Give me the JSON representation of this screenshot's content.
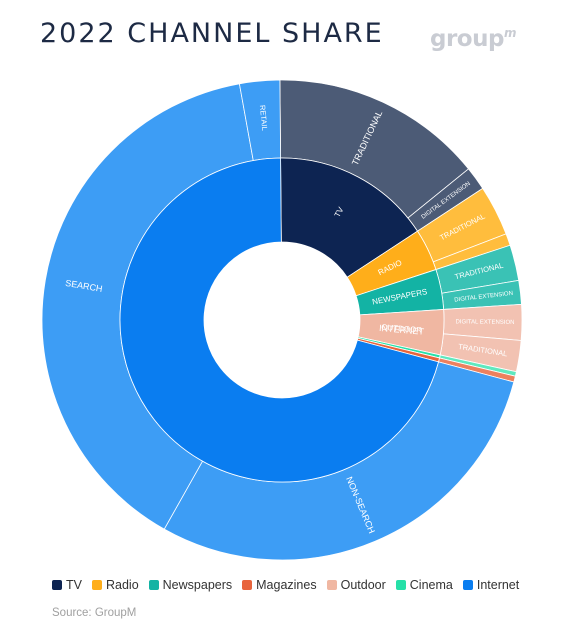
{
  "title": "2022 CHANNEL SHARE",
  "logo": {
    "text": "group",
    "mark": "m"
  },
  "source": "Source: GroupM",
  "chart_data": {
    "type": "sunburst",
    "title": "2022 CHANNEL SHARE",
    "inner": [
      {
        "name": "TV",
        "label": "TV",
        "value": 15.9,
        "color": "#0d2452"
      },
      {
        "name": "Radio",
        "label": "RADIO",
        "value": 4.2,
        "color": "#ffae1a"
      },
      {
        "name": "Newspapers",
        "label": "NEWSPAPERS",
        "value": 4.0,
        "color": "#13b3a4"
      },
      {
        "name": "Outdoor",
        "label": "OUTDOOR",
        "value": 4.5,
        "color": "#f0b7a2"
      },
      {
        "name": "Cinema",
        "label": "",
        "value": 0.3,
        "color": "#26e0a8"
      },
      {
        "name": "Magazines",
        "label": "",
        "value": 0.4,
        "color": "#e8643c"
      },
      {
        "name": "Internet",
        "label": "INTERNET",
        "value": 70.7,
        "color": "#0a7df0"
      }
    ],
    "outer": [
      {
        "parent": "TV",
        "label": "TRADITIONAL",
        "value": 14.3,
        "color": "#4c5b76"
      },
      {
        "parent": "TV",
        "label": "DIGITAL EXTENSION",
        "value": 1.6,
        "color": "#4c5b76"
      },
      {
        "parent": "Radio",
        "label": "TRADITIONAL",
        "value": 3.4,
        "color": "#ffbd3d"
      },
      {
        "parent": "Radio",
        "label": "",
        "value": 0.8,
        "color": "#ffbd3d"
      },
      {
        "parent": "Newspapers",
        "label": "TRADITIONAL",
        "value": 2.4,
        "color": "#3ac2b5"
      },
      {
        "parent": "Newspapers",
        "label": "DIGITAL EXTENSION",
        "value": 1.6,
        "color": "#3ac2b5"
      },
      {
        "parent": "Outdoor",
        "label": "DIGITAL EXTENSION",
        "value": 2.4,
        "color": "#f2c2b2"
      },
      {
        "parent": "Outdoor",
        "label": "TRADITIONAL",
        "value": 2.1,
        "color": "#f2c2b2"
      },
      {
        "parent": "Cinema",
        "label": "",
        "value": 0.3,
        "color": "#5fe8bf"
      },
      {
        "parent": "Magazines",
        "label": "",
        "value": 0.4,
        "color": "#ec805e"
      },
      {
        "parent": "Internet",
        "label": "NON-SEARCH",
        "value": 29.0,
        "color": "#3d9df5"
      },
      {
        "parent": "Internet",
        "label": "SEARCH",
        "value": 39.0,
        "color": "#3d9df5"
      },
      {
        "parent": "Internet",
        "label": "RETAIL",
        "value": 2.7,
        "color": "#3d9df5"
      }
    ],
    "legend": [
      {
        "name": "TV",
        "color": "#0d2452"
      },
      {
        "name": "Radio",
        "color": "#ffae1a"
      },
      {
        "name": "Newspapers",
        "color": "#13b3a4"
      },
      {
        "name": "Magazines",
        "color": "#e8643c"
      },
      {
        "name": "Outdoor",
        "color": "#f0b7a2"
      },
      {
        "name": "Cinema",
        "color": "#26e0a8"
      },
      {
        "name": "Internet",
        "color": "#0a7df0"
      }
    ],
    "legend_position": "bottom"
  }
}
